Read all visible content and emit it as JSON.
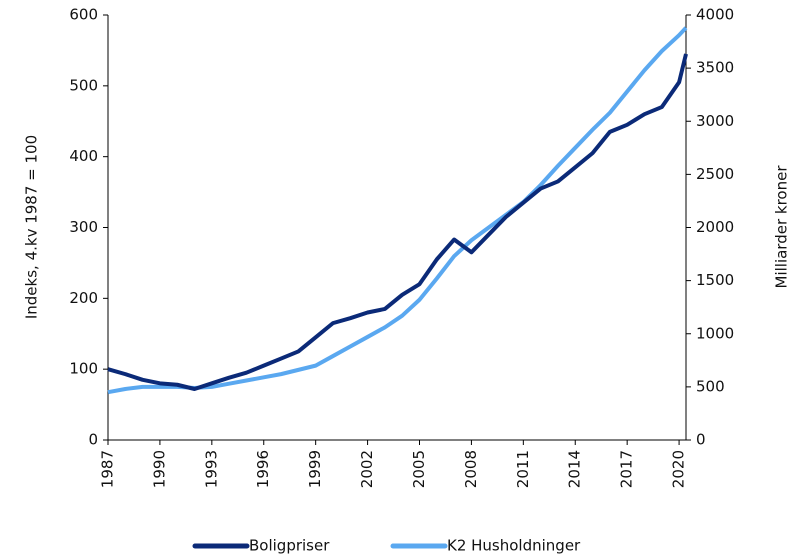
{
  "chart_data": {
    "type": "line",
    "y_label": "Indeks, 4.kv 1987 = 100",
    "y2_label": "Milliarder kroner",
    "x": [
      1987,
      1988,
      1989,
      1990,
      1991,
      1992,
      1993,
      1994,
      1995,
      1996,
      1997,
      1998,
      1999,
      2000,
      2001,
      2002,
      2003,
      2004,
      2005,
      2006,
      2007,
      2008,
      2009,
      2010,
      2011,
      2012,
      2013,
      2014,
      2015,
      2016,
      2017,
      2018,
      2019,
      2020,
      2020.4
    ],
    "series": [
      {
        "name": "Boligpriser",
        "color": "#0b2a78",
        "values": [
          100,
          93,
          85,
          80,
          78,
          72,
          80,
          88,
          95,
          105,
          115,
          125,
          145,
          165,
          172,
          180,
          185,
          205,
          220,
          255,
          283,
          265,
          290,
          315,
          335,
          355,
          365,
          385,
          405,
          435,
          445,
          460,
          470,
          505,
          545
        ]
      },
      {
        "name": "K2 Husholdninger",
        "color": "#5aa8f0",
        "axis": "y2",
        "values": [
          450,
          480,
          500,
          500,
          500,
          490,
          500,
          530,
          560,
          590,
          620,
          660,
          700,
          790,
          880,
          970,
          1060,
          1170,
          1320,
          1520,
          1730,
          1880,
          2000,
          2120,
          2240,
          2400,
          2580,
          2750,
          2920,
          3080,
          3280,
          3480,
          3660,
          3810,
          3880
        ]
      }
    ],
    "xlim": [
      1987,
      2020.4
    ],
    "xticks": [
      1987,
      1990,
      1993,
      1996,
      1999,
      2002,
      2005,
      2008,
      2011,
      2014,
      2017,
      2020
    ],
    "ylim": [
      0,
      600
    ],
    "yticks": [
      0,
      100,
      200,
      300,
      400,
      500,
      600
    ],
    "y2lim": [
      0,
      4000
    ],
    "y2ticks": [
      0,
      500,
      1000,
      1500,
      2000,
      2500,
      3000,
      3500,
      4000
    ],
    "legend": "bottom"
  }
}
